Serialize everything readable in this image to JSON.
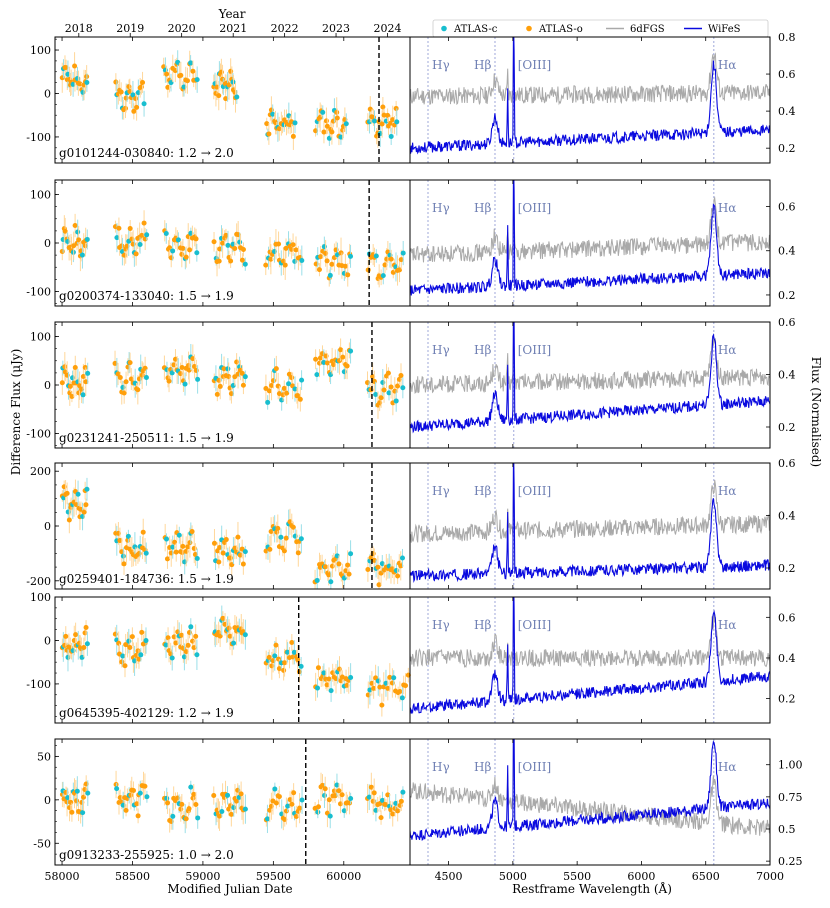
{
  "chart_data": {
    "type": "scatter",
    "title": "",
    "top_axis": {
      "label": "Year",
      "ticks": [
        {
          "label": "2018",
          "mjd": 58119
        },
        {
          "label": "2019",
          "mjd": 58484
        },
        {
          "label": "2020",
          "mjd": 58849
        },
        {
          "label": "2021",
          "mjd": 59215
        },
        {
          "label": "2022",
          "mjd": 59580
        },
        {
          "label": "2023",
          "mjd": 59945
        },
        {
          "label": "2024",
          "mjd": 60310
        }
      ]
    },
    "left": {
      "xlabel": "Modified Julian Date",
      "ylabel": "Difference Flux (μJy)",
      "xlim": [
        57950,
        60470
      ],
      "xticks": [
        58000,
        58500,
        59000,
        59500,
        60000
      ],
      "series_names": [
        "ATLAS-c",
        "ATLAS-o"
      ]
    },
    "right": {
      "xlabel": "Restframe Wavelength (Å)",
      "ylabel": "Flux (Normalised)",
      "xlim": [
        4200,
        7000
      ],
      "xticks": [
        4500,
        5000,
        5500,
        6000,
        6500,
        7000
      ],
      "series_names": [
        "6dFGS",
        "WiFeS"
      ],
      "lines": [
        {
          "label": "Hγ",
          "wavelength": 4340
        },
        {
          "label": "Hβ",
          "wavelength": 4861
        },
        {
          "label": "[OIII]",
          "wavelength": 5007
        },
        {
          "label": "Hα",
          "wavelength": 6563
        }
      ]
    },
    "legend": {
      "position": "top",
      "entries": [
        {
          "label": "ATLAS-c",
          "color": "#17becf",
          "marker": "dot"
        },
        {
          "label": "ATLAS-o",
          "color": "#ff9f0a",
          "marker": "dot"
        },
        {
          "label": "6dFGS",
          "color": "#a9a9a9",
          "marker": "line"
        },
        {
          "label": "WiFeS",
          "color": "#0a0adf",
          "marker": "line"
        }
      ]
    },
    "panels": [
      {
        "name": "g0101244-030840",
        "label": "g0101244-030840: 1.2 → 2.0",
        "ylim": [
          -160,
          130
        ],
        "yticks": [
          -100,
          0,
          100
        ],
        "wifes_mjd": 60250,
        "seasons": [
          [
            58000,
            58180,
            30
          ],
          [
            58380,
            58580,
            -5
          ],
          [
            58720,
            58960,
            45
          ],
          [
            59080,
            59240,
            25
          ],
          [
            59450,
            59650,
            -65
          ],
          [
            59800,
            60020,
            -75
          ],
          [
            60170,
            60380,
            -70
          ]
        ],
        "spec_ylim": [
          0.12,
          0.8
        ],
        "spec_yticks": [
          0.2,
          0.4,
          0.6,
          0.8
        ],
        "sixdf_base": 0.48,
        "sixdf_slope": 0.02,
        "wifes_base": 0.2,
        "wifes_slope": 0.1
      },
      {
        "name": "g0200374-133040",
        "label": "g0200374-133040: 1.5 → 1.9",
        "ylim": [
          -130,
          130
        ],
        "yticks": [
          -100,
          0,
          100
        ],
        "wifes_mjd": 60180,
        "seasons": [
          [
            58000,
            58180,
            0
          ],
          [
            58380,
            58600,
            5
          ],
          [
            58730,
            58960,
            -5
          ],
          [
            59080,
            59300,
            -10
          ],
          [
            59450,
            59700,
            -20
          ],
          [
            59800,
            60050,
            -40
          ],
          [
            60170,
            60420,
            -45
          ]
        ],
        "spec_ylim": [
          0.15,
          0.72
        ],
        "spec_yticks": [
          0.2,
          0.4,
          0.6
        ],
        "sixdf_base": 0.38,
        "sixdf_slope": 0.06,
        "wifes_base": 0.22,
        "wifes_slope": 0.08
      },
      {
        "name": "g0231241-250511",
        "label": "g0231241-250511: 1.5 → 1.9",
        "ylim": [
          -130,
          130
        ],
        "yticks": [
          -100,
          0,
          100
        ],
        "wifes_mjd": 60200,
        "seasons": [
          [
            58000,
            58180,
            5
          ],
          [
            58380,
            58600,
            15
          ],
          [
            58730,
            58960,
            30
          ],
          [
            59080,
            59300,
            15
          ],
          [
            59450,
            59700,
            0
          ],
          [
            59800,
            60050,
            50
          ],
          [
            60170,
            60420,
            -10
          ]
        ],
        "spec_ylim": [
          0.12,
          0.6
        ],
        "spec_yticks": [
          0.2,
          0.4,
          0.6
        ],
        "sixdf_base": 0.36,
        "sixdf_slope": 0.03,
        "wifes_base": 0.2,
        "wifes_slope": 0.1
      },
      {
        "name": "g0259401-184736",
        "label": "g0259401-184736: 1.5 → 1.9",
        "ylim": [
          -230,
          230
        ],
        "yticks": [
          -200,
          0,
          200
        ],
        "wifes_mjd": 60200,
        "seasons": [
          [
            58000,
            58180,
            80
          ],
          [
            58380,
            58600,
            -80
          ],
          [
            58730,
            58960,
            -80
          ],
          [
            59080,
            59300,
            -90
          ],
          [
            59450,
            59700,
            -40
          ],
          [
            59800,
            60050,
            -150
          ],
          [
            60170,
            60420,
            -160
          ]
        ],
        "spec_ylim": [
          0.12,
          0.6
        ],
        "spec_yticks": [
          0.2,
          0.4,
          0.6
        ],
        "sixdf_base": 0.33,
        "sixdf_slope": 0.04,
        "wifes_base": 0.17,
        "wifes_slope": 0.04
      },
      {
        "name": "g0645395-402129",
        "label": "g0645395-402129: 1.2 → 1.9",
        "ylim": [
          -190,
          100
        ],
        "yticks": [
          -100,
          0,
          100
        ],
        "wifes_mjd": 59680,
        "seasons": [
          [
            58000,
            58180,
            -10
          ],
          [
            58380,
            58600,
            -20
          ],
          [
            58730,
            58960,
            -5
          ],
          [
            59080,
            59300,
            20
          ],
          [
            59450,
            59700,
            -40
          ],
          [
            59800,
            60050,
            -80
          ],
          [
            60170,
            60470,
            -110
          ]
        ],
        "spec_ylim": [
          0.08,
          0.7
        ],
        "spec_yticks": [
          0.2,
          0.4,
          0.6
        ],
        "sixdf_base": 0.4,
        "sixdf_slope": 0.0,
        "wifes_base": 0.15,
        "wifes_slope": 0.16
      },
      {
        "name": "g0913233-255925",
        "label": "g0913233-255925: 1.0 → 2.0",
        "ylim": [
          -75,
          70
        ],
        "yticks": [
          -50,
          0,
          50
        ],
        "wifes_mjd": 59730,
        "seasons": [
          [
            58000,
            58180,
            0
          ],
          [
            58380,
            58600,
            0
          ],
          [
            58730,
            58960,
            -5
          ],
          [
            59080,
            59300,
            -5
          ],
          [
            59450,
            59700,
            -5
          ],
          [
            59800,
            60050,
            0
          ],
          [
            60170,
            60420,
            -5
          ]
        ],
        "spec_ylim": [
          0.22,
          1.2
        ],
        "spec_yticks": [
          0.25,
          0.5,
          0.75,
          1.0
        ],
        "sixdf_base": 0.8,
        "sixdf_slope": -0.3,
        "wifes_base": 0.45,
        "wifes_slope": 0.25
      }
    ]
  }
}
